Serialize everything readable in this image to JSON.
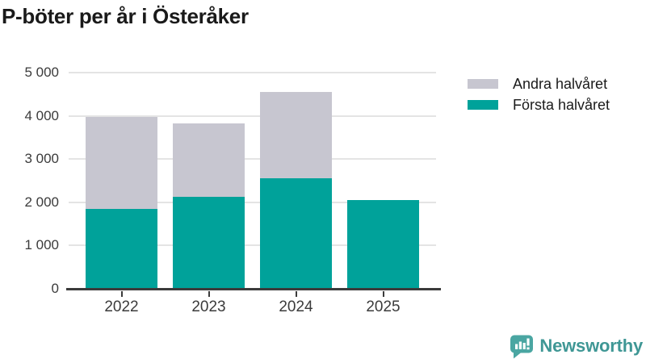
{
  "chart_data": {
    "type": "bar",
    "stacked": true,
    "title": "P-böter per år i Österåker",
    "categories": [
      "2022",
      "2023",
      "2024",
      "2025"
    ],
    "series": [
      {
        "name": "Första halvåret",
        "color": "#00a29a",
        "values": [
          1840,
          2120,
          2550,
          2050
        ]
      },
      {
        "name": "Andra halvåret",
        "color": "#c7c6d0",
        "values": [
          2130,
          1700,
          2010,
          0
        ]
      }
    ],
    "ylim": [
      0,
      5000
    ],
    "yticks": [
      0,
      1000,
      2000,
      3000,
      4000,
      5000
    ],
    "ytick_labels": [
      "0",
      "1 000",
      "2 000",
      "3 000",
      "4 000",
      "5 000"
    ],
    "grid": true,
    "gridline_color": "#e4e4e4",
    "axis_color": "#3b3b3b",
    "legend": {
      "position": "top-right",
      "items": [
        {
          "label": "Andra halvåret",
          "color": "#c7c6d0"
        },
        {
          "label": "Första halvåret",
          "color": "#00a29a"
        }
      ]
    }
  },
  "footer": {
    "brand": "Newsworthy",
    "brand_color": "#3f9795",
    "icon": "bar-chart-speech-bubble-icon",
    "icon_color": "#4aa6a2"
  }
}
